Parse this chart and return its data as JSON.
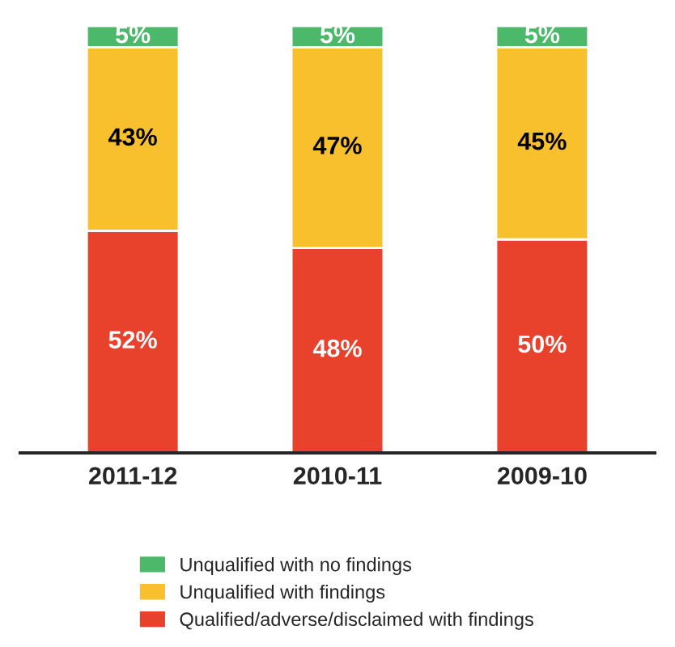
{
  "chart_data": {
    "type": "bar",
    "stacked": true,
    "legend": "bottom",
    "categories": [
      "2011-12",
      "2010-11",
      "2009-10"
    ],
    "series": [
      {
        "name": "Qualified/adverse/disclaimed with findings",
        "color": "#e8412c",
        "values": [
          52,
          48,
          50
        ],
        "value_labels": [
          "52%",
          "48%",
          "50%"
        ]
      },
      {
        "name": "Unqualified with findings",
        "color": "#f8c02c",
        "values": [
          43,
          47,
          45
        ],
        "value_labels": [
          "43%",
          "47%",
          "45%"
        ]
      },
      {
        "name": "Unqualified with no findings",
        "color": "#4cb86a",
        "values": [
          5,
          5,
          5
        ],
        "value_labels": [
          "5%",
          "5%",
          "5%"
        ]
      }
    ]
  }
}
